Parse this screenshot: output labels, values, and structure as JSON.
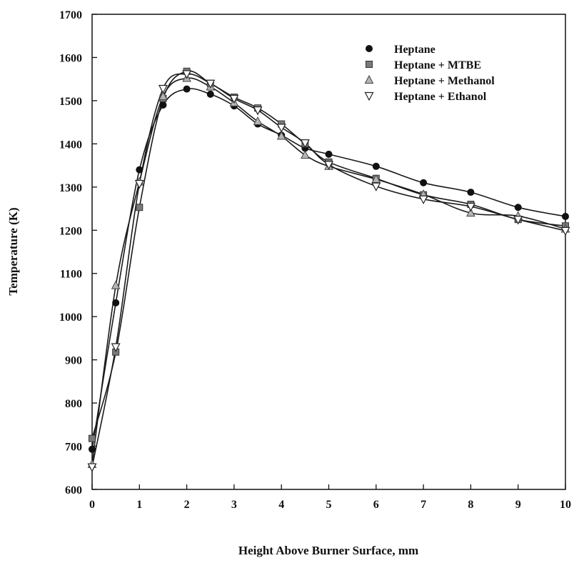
{
  "chart_data": {
    "type": "scatter",
    "xlabel": "Height Above Burner Surface, mm",
    "ylabel": "Temperature (K)",
    "xlim": [
      0,
      10
    ],
    "ylim": [
      600,
      1700
    ],
    "xticks": [
      0,
      1,
      2,
      3,
      4,
      5,
      6,
      7,
      8,
      9,
      10
    ],
    "yticks": [
      600,
      700,
      800,
      900,
      1000,
      1100,
      1200,
      1300,
      1400,
      1500,
      1600,
      1700
    ],
    "grid": false,
    "legend_position": "top-right",
    "series": [
      {
        "name": "Heptane",
        "marker": "circle",
        "x": [
          0,
          0.5,
          1,
          1.5,
          2,
          2.5,
          3,
          3.5,
          4,
          4.5,
          5,
          6,
          7,
          8,
          9,
          10
        ],
        "y": [
          693,
          1032,
          1340,
          1490,
          1527,
          1515,
          1488,
          1446,
          1420,
          1390,
          1376,
          1348,
          1310,
          1288,
          1253,
          1232
        ]
      },
      {
        "name": "Heptane + MTBE",
        "marker": "square",
        "x": [
          0,
          0.5,
          1,
          1.5,
          2,
          2.5,
          3,
          3.5,
          4,
          4.5,
          5,
          6,
          7,
          8,
          9,
          10
        ],
        "y": [
          718,
          918,
          1253,
          1505,
          1568,
          1540,
          1508,
          1483,
          1446,
          1400,
          1358,
          1320,
          1282,
          1260,
          1225,
          1210
        ]
      },
      {
        "name": "Heptane + Methanol",
        "marker": "triangle-up",
        "x": [
          0,
          0.5,
          1,
          1.5,
          2,
          2.5,
          3,
          3.5,
          4,
          4.5,
          5,
          6,
          7,
          8,
          9,
          10
        ],
        "y": [
          658,
          1072,
          1312,
          1510,
          1552,
          1532,
          1495,
          1452,
          1418,
          1374,
          1348,
          1318,
          1283,
          1240,
          1233,
          1203
        ]
      },
      {
        "name": "Heptane + Ethanol",
        "marker": "triangle-down",
        "x": [
          0,
          0.5,
          1,
          1.5,
          2,
          2.5,
          3,
          3.5,
          4,
          4.5,
          5,
          6,
          7,
          8,
          9,
          10
        ],
        "y": [
          652,
          930,
          1308,
          1528,
          1562,
          1540,
          1505,
          1478,
          1438,
          1402,
          1352,
          1302,
          1272,
          1255,
          1225,
          1199
        ]
      }
    ]
  }
}
